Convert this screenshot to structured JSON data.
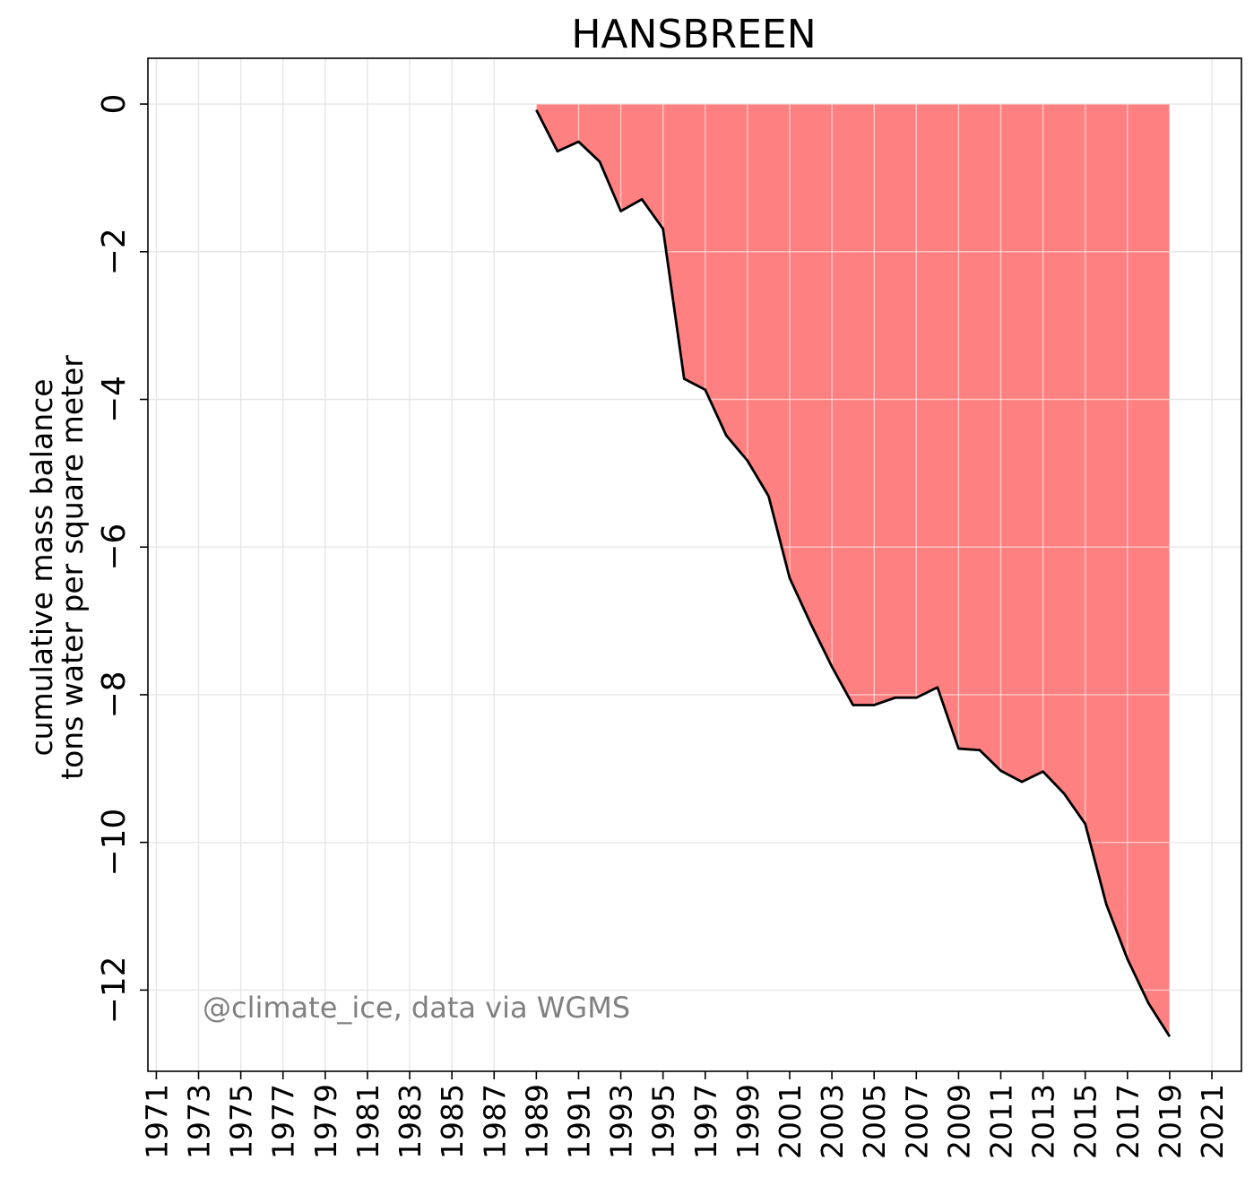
{
  "chart_data": {
    "type": "area",
    "title": "HANSBREEN",
    "ylabel_line1": "cumulative mass balance",
    "ylabel_line2": "tons water per square meter",
    "xlabel": "",
    "xlim": [
      1970.6,
      1972.0
    ],
    "xlim_data": [
      1970.6,
      2022.4
    ],
    "ylim": [
      -13.1,
      0.62
    ],
    "x_ticks": [
      1971,
      1973,
      1975,
      1977,
      1979,
      1981,
      1983,
      1985,
      1987,
      1989,
      1991,
      1993,
      1995,
      1997,
      1999,
      2001,
      2003,
      2005,
      2007,
      2009,
      2011,
      2013,
      2015,
      2017,
      2019,
      2021
    ],
    "y_ticks": [
      0,
      -2,
      -4,
      -6,
      -8,
      -10,
      -12
    ],
    "y_tick_labels": [
      "0",
      "−2",
      "−4",
      "−6",
      "−8",
      "−10",
      "−12"
    ],
    "grid": true,
    "fill_color": "#ff8080",
    "line_color": "#000000",
    "x": [
      1989,
      1990,
      1991,
      1992,
      1993,
      1994,
      1995,
      1996,
      1997,
      1998,
      1999,
      2000,
      2001,
      2002,
      2003,
      2004,
      2005,
      2006,
      2007,
      2008,
      2009,
      2010,
      2011,
      2012,
      2013,
      2014,
      2015,
      2016,
      2017,
      2018,
      2019
    ],
    "values": [
      -0.08,
      -0.64,
      -0.51,
      -0.78,
      -1.45,
      -1.29,
      -1.69,
      -3.72,
      -3.87,
      -4.49,
      -4.83,
      -5.31,
      -6.42,
      -7.04,
      -7.62,
      -8.14,
      -8.14,
      -8.04,
      -8.04,
      -7.9,
      -8.73,
      -8.75,
      -9.03,
      -9.18,
      -9.04,
      -9.34,
      -9.75,
      -10.84,
      -11.58,
      -12.18,
      -12.63
    ],
    "annotation": "@climate_ice, data via WGMS",
    "annotation_color": "#808080"
  }
}
